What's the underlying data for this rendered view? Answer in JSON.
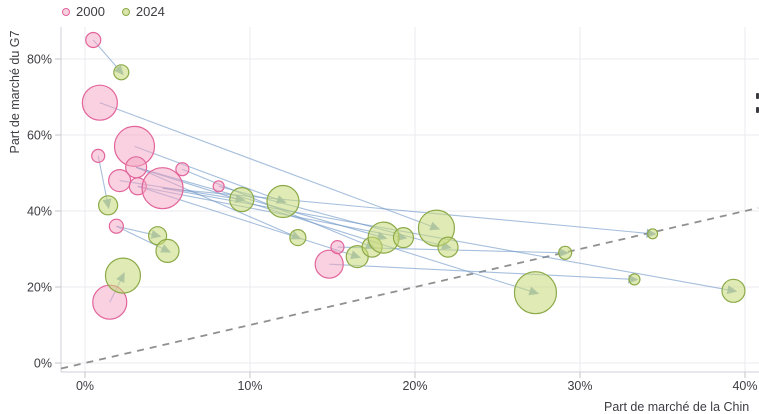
{
  "legend": {
    "items": [
      {
        "label": "2000",
        "color": "#e2649a"
      },
      {
        "label": "2024",
        "color": "#8caa48"
      }
    ]
  },
  "colors": {
    "pink_stroke": "#e2649a",
    "pink_fill": "rgba(243,163,193,0.5)",
    "green_stroke": "#8caa48",
    "green_fill": "rgba(199,216,120,0.55)",
    "link_line": "rgba(107,149,198,0.6)",
    "arrow": "#86a5c9",
    "parity_line": "#909090",
    "gridline": "#ebebef",
    "axis_line": "#d2d2d8",
    "tick": "#c4c4ca",
    "text": "#3d3d44",
    "background": "#ffffff"
  },
  "chart_data": {
    "type": "scatter",
    "subtype": "bubble-arrow-plot",
    "title": "",
    "xlabel": "Part de marché de la Chin",
    "ylabel": "Part de marché du G7",
    "xlim": [
      -1.5,
      40.8
    ],
    "ylim": [
      -2.5,
      88
    ],
    "grid": true,
    "legend_position": "top-left",
    "x_ticks": [
      {
        "value": 0,
        "label": "0%"
      },
      {
        "value": 10,
        "label": "10%"
      },
      {
        "value": 20,
        "label": "20%"
      },
      {
        "value": 30,
        "label": "30%"
      },
      {
        "value": 40,
        "label": "40%"
      }
    ],
    "y_ticks": [
      {
        "value": 0,
        "label": "0%"
      },
      {
        "value": 20,
        "label": "20%"
      },
      {
        "value": 40,
        "label": "40%"
      },
      {
        "value": 60,
        "label": "60%"
      },
      {
        "value": 80,
        "label": "80%"
      }
    ],
    "series": [
      {
        "name": "2000",
        "points": [
          {
            "x": 0.5,
            "y": 85,
            "r": 7.5
          },
          {
            "x": 0.9,
            "y": 68.5,
            "r": 17.5
          },
          {
            "x": 0.8,
            "y": 54.5,
            "r": 6.5
          },
          {
            "x": 3.0,
            "y": 57,
            "r": 20
          },
          {
            "x": 3.1,
            "y": 51.5,
            "r": 10.5
          },
          {
            "x": 2.1,
            "y": 48,
            "r": 11
          },
          {
            "x": 3.2,
            "y": 46.5,
            "r": 8.5
          },
          {
            "x": 4.7,
            "y": 46,
            "r": 20.5
          },
          {
            "x": 5.9,
            "y": 51,
            "r": 6.5
          },
          {
            "x": 8.1,
            "y": 46.5,
            "r": 5.5
          },
          {
            "x": 1.9,
            "y": 36,
            "r": 7
          },
          {
            "x": 1.5,
            "y": 16,
            "r": 17
          },
          {
            "x": 14.8,
            "y": 26,
            "r": 14
          },
          {
            "x": 15.3,
            "y": 30.5,
            "r": 6.5
          }
        ]
      },
      {
        "name": "2024",
        "points": [
          {
            "x": 2.2,
            "y": 76.5,
            "r": 7.5
          },
          {
            "x": 1.4,
            "y": 41.5,
            "r": 9.5
          },
          {
            "x": 4.4,
            "y": 33.5,
            "r": 9
          },
          {
            "x": 5.0,
            "y": 29.5,
            "r": 11.5
          },
          {
            "x": 2.3,
            "y": 23,
            "r": 17.5
          },
          {
            "x": 9.5,
            "y": 43,
            "r": 12
          },
          {
            "x": 12.0,
            "y": 42.5,
            "r": 16
          },
          {
            "x": 12.9,
            "y": 33,
            "r": 8
          },
          {
            "x": 16.5,
            "y": 28,
            "r": 11
          },
          {
            "x": 17.4,
            "y": 30.5,
            "r": 10
          },
          {
            "x": 18.1,
            "y": 33,
            "r": 15.5
          },
          {
            "x": 19.3,
            "y": 33,
            "r": 10
          },
          {
            "x": 21.3,
            "y": 35.5,
            "r": 18
          },
          {
            "x": 22.0,
            "y": 30.5,
            "r": 10
          },
          {
            "x": 29.1,
            "y": 29,
            "r": 6.5
          },
          {
            "x": 34.4,
            "y": 34,
            "r": 5
          },
          {
            "x": 33.3,
            "y": 22,
            "r": 5.5
          },
          {
            "x": 27.3,
            "y": 18.5,
            "r": 21
          },
          {
            "x": 39.3,
            "y": 19,
            "r": 11.5
          }
        ]
      }
    ],
    "links": [
      [
        0,
        0
      ],
      [
        2,
        1
      ],
      [
        10,
        2
      ],
      [
        10,
        3
      ],
      [
        11,
        4
      ],
      [
        5,
        5
      ],
      [
        3,
        6
      ],
      [
        4,
        7
      ],
      [
        6,
        8
      ],
      [
        8,
        9
      ],
      [
        4,
        10
      ],
      [
        6,
        11
      ],
      [
        1,
        12
      ],
      [
        9,
        13
      ],
      [
        13,
        14
      ],
      [
        7,
        15
      ],
      [
        12,
        16
      ],
      [
        4,
        17
      ],
      [
        7,
        18
      ]
    ],
    "parity_line": {
      "style": "dashed",
      "from": [
        -1.45,
        -1.45
      ],
      "to": [
        40.8,
        40.8
      ]
    }
  }
}
